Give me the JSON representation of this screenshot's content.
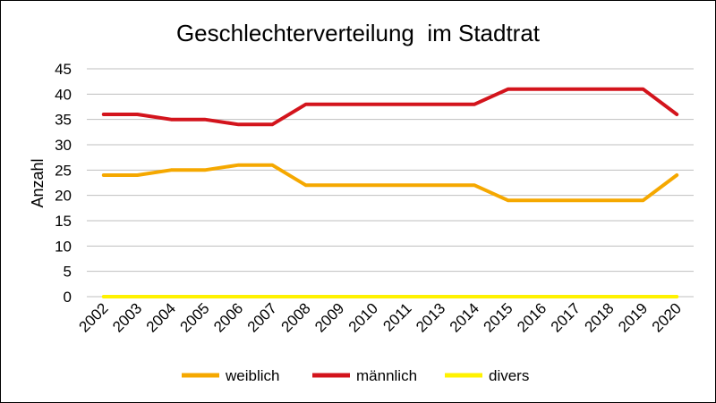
{
  "chart_data": {
    "type": "line",
    "title": "Geschlechterverteilung  im Stadtrat",
    "xlabel": "",
    "ylabel": "Anzahl",
    "ylim": [
      0,
      45
    ],
    "yticks": [
      "0",
      "5",
      "10",
      "15",
      "20",
      "25",
      "30",
      "35",
      "40",
      "45"
    ],
    "categories": [
      "2002",
      "2003",
      "2004",
      "2005",
      "2006",
      "2007",
      "2008",
      "2009",
      "2010",
      "2011",
      "2013",
      "2014",
      "2015",
      "2016",
      "2017",
      "2018",
      "2019",
      "2020"
    ],
    "grid": true,
    "legend_position": "bottom",
    "series": [
      {
        "name": "weiblich",
        "color": "#F5A800",
        "values": [
          24,
          24,
          25,
          25,
          26,
          26,
          22,
          22,
          22,
          22,
          22,
          22,
          19,
          19,
          19,
          19,
          19,
          24
        ]
      },
      {
        "name": "männlich",
        "color": "#D3141C",
        "values": [
          36,
          36,
          35,
          35,
          34,
          34,
          38,
          38,
          38,
          38,
          38,
          38,
          41,
          41,
          41,
          41,
          41,
          36
        ]
      },
      {
        "name": "divers",
        "color": "#FFF200",
        "values": [
          0,
          0,
          0,
          0,
          0,
          0,
          0,
          0,
          0,
          0,
          0,
          0,
          0,
          0,
          0,
          0,
          0,
          0
        ]
      }
    ]
  }
}
